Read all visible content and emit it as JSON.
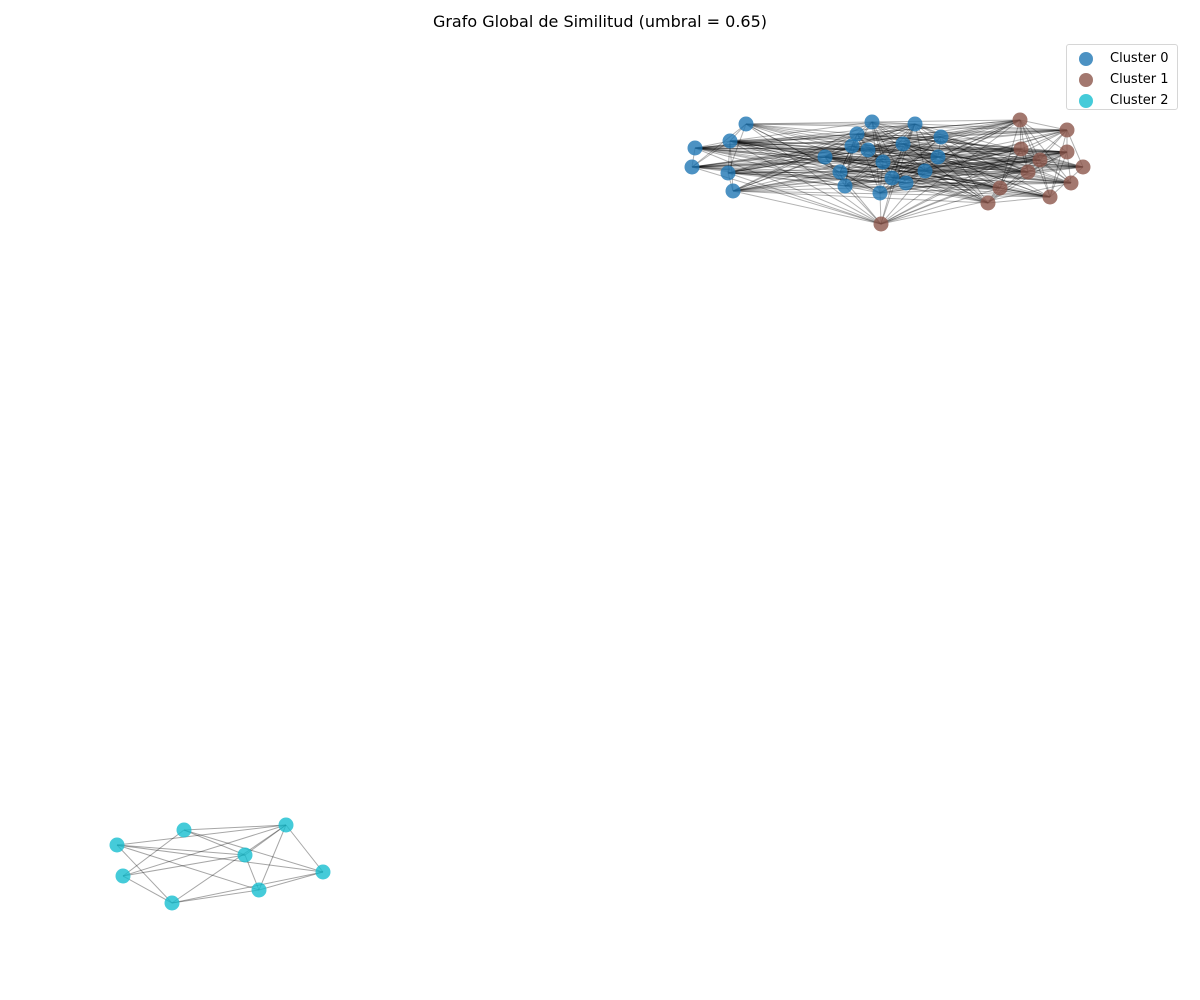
{
  "title": "Grafo Global de Similitud (umbral = 0.65)",
  "legend": [
    {
      "label": "Cluster 0",
      "color": "#1f77b4"
    },
    {
      "label": "Cluster 1",
      "color": "#8c564b"
    },
    {
      "label": "Cluster 2",
      "color": "#17becf"
    }
  ],
  "node_counts": {
    "cluster_0": 22,
    "cluster_1": 12,
    "cluster_2": 8
  },
  "edge_color": "#000000"
}
